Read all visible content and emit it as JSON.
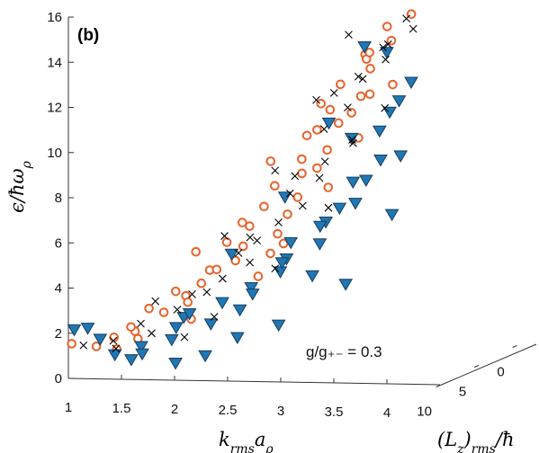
{
  "panel_label": "(b)",
  "chart_data": {
    "type": "scatter",
    "title": "",
    "xlabel": "k_rms a_ρ",
    "ylabel": "ε/ħω_ρ",
    "zlabel": "(L_z)_rms/ħ",
    "xlim": [
      1,
      4.5
    ],
    "ylim": [
      0,
      16
    ],
    "zlim": [
      0,
      10
    ],
    "x_ticks": [
      "1",
      "1.5",
      "2",
      "2.5",
      "3",
      "3.5",
      "4"
    ],
    "y_ticks": [
      "0",
      "2",
      "4",
      "6",
      "8",
      "10",
      "12",
      "14",
      "16"
    ],
    "z_ticks": [
      "0",
      "5",
      "10"
    ],
    "annotation": "g/g₊₋ = 0.3",
    "grid": false,
    "colors": {
      "circle": "#e8622a",
      "triangle": "#1f77b4",
      "triangle_edge": "#1a3d5c",
      "cross": "#000000"
    },
    "series": [
      {
        "marker": "circle-open",
        "color": "#e8622a",
        "points": [
          [
            1.63,
            1.73,
            3.0
          ],
          [
            1.76,
            1.58,
            4.2
          ],
          [
            1.84,
            1.42,
            5.5
          ],
          [
            1.96,
            1.99,
            3.8
          ],
          [
            2.09,
            2.24,
            4.6
          ],
          [
            2.18,
            2.47,
            3.1
          ],
          [
            2.25,
            3.04,
            5.9
          ],
          [
            2.41,
            3.31,
            2.4
          ],
          [
            2.49,
            2.74,
            6.1
          ],
          [
            2.55,
            4.03,
            3.7
          ],
          [
            2.68,
            4.35,
            5.0
          ],
          [
            2.74,
            3.86,
            2.6
          ],
          [
            2.81,
            4.95,
            4.4
          ],
          [
            2.89,
            5.32,
            6.3
          ],
          [
            2.97,
            5.01,
            3.3
          ],
          [
            3.04,
            5.98,
            5.4
          ],
          [
            3.1,
            6.23,
            2.9
          ],
          [
            3.16,
            5.62,
            7.0
          ],
          [
            3.22,
            6.91,
            4.0
          ],
          [
            3.28,
            7.11,
            2.5
          ],
          [
            3.33,
            6.52,
            5.8
          ],
          [
            3.39,
            7.79,
            3.6
          ],
          [
            3.45,
            8.12,
            6.6
          ],
          [
            3.5,
            7.41,
            4.9
          ],
          [
            3.56,
            8.73,
            2.8
          ],
          [
            3.61,
            9.21,
            5.2
          ],
          [
            3.67,
            8.53,
            7.4
          ],
          [
            3.72,
            9.88,
            3.9
          ],
          [
            3.78,
            10.23,
            6.0
          ],
          [
            3.83,
            9.47,
            4.3
          ],
          [
            3.88,
            10.96,
            2.6
          ],
          [
            3.93,
            11.43,
            5.5
          ],
          [
            3.98,
            10.73,
            7.1
          ],
          [
            4.03,
            12.08,
            3.4
          ],
          [
            4.08,
            12.6,
            6.2
          ],
          [
            4.12,
            11.91,
            4.7
          ],
          [
            4.17,
            13.22,
            2.9
          ],
          [
            4.22,
            13.84,
            5.6
          ],
          [
            4.26,
            13.08,
            7.6
          ],
          [
            4.3,
            14.51,
            4.1
          ],
          [
            4.35,
            15.06,
            6.4
          ],
          [
            4.39,
            14.33,
            3.2
          ],
          [
            4.43,
            15.72,
            5.0
          ],
          [
            4.47,
            16.21,
            7.2
          ],
          [
            2.22,
            1.94,
            3.4
          ],
          [
            2.63,
            3.54,
            4.1
          ],
          [
            2.86,
            5.82,
            2.3
          ],
          [
            3.07,
            4.61,
            6.7
          ],
          [
            3.36,
            6.08,
            6.1
          ],
          [
            3.53,
            9.82,
            2.7
          ],
          [
            3.71,
            11.13,
            5.7
          ],
          [
            3.91,
            12.34,
            3.8
          ],
          [
            4.11,
            14.52,
            6.8
          ],
          [
            4.31,
            12.74,
            4.5
          ]
        ]
      },
      {
        "marker": "triangle-down-filled",
        "color": "#1f77b4",
        "points": [
          [
            1.62,
            2.36,
            3.4
          ],
          [
            1.71,
            1.89,
            5.2
          ],
          [
            1.79,
            2.44,
            2.9
          ],
          [
            1.9,
            1.22,
            4.6
          ],
          [
            2.02,
            1.54,
            6.1
          ],
          [
            2.14,
            1.03,
            3.6
          ],
          [
            2.23,
            1.82,
            7.0
          ],
          [
            2.32,
            1.31,
            2.7
          ],
          [
            2.46,
            2.42,
            4.8
          ],
          [
            2.58,
            1.12,
            6.6
          ],
          [
            2.66,
            2.91,
            3.3
          ],
          [
            2.78,
            1.89,
            7.8
          ],
          [
            2.86,
            3.51,
            5.2
          ],
          [
            2.95,
            2.63,
            2.9
          ],
          [
            3.03,
            4.14,
            6.4
          ],
          [
            3.12,
            3.22,
            4.1
          ],
          [
            3.21,
            4.81,
            7.5
          ],
          [
            3.3,
            3.94,
            3.4
          ],
          [
            3.38,
            5.42,
            6.2
          ],
          [
            3.46,
            4.62,
            8.1
          ],
          [
            3.54,
            6.18,
            4.8
          ],
          [
            3.62,
            5.34,
            2.9
          ],
          [
            3.69,
            7.03,
            6.9
          ],
          [
            3.77,
            6.11,
            5.3
          ],
          [
            3.84,
            7.82,
            8.4
          ],
          [
            3.91,
            6.93,
            3.7
          ],
          [
            3.98,
            8.81,
            6.5
          ],
          [
            4.05,
            7.72,
            4.2
          ],
          [
            4.12,
            9.75,
            7.9
          ],
          [
            4.18,
            8.92,
            5.6
          ],
          [
            4.24,
            10.84,
            3.3
          ],
          [
            4.3,
            9.93,
            8.0
          ],
          [
            4.36,
            11.92,
            6.1
          ],
          [
            4.41,
            11.13,
            4.4
          ],
          [
            4.46,
            13.21,
            7.3
          ],
          [
            4.5,
            12.44,
            5.5
          ],
          [
            4.53,
            14.63,
            3.8
          ],
          [
            2.74,
            3.08,
            3.0
          ],
          [
            3.18,
            5.73,
            2.5
          ],
          [
            3.63,
            8.24,
            3.1
          ],
          [
            4.07,
            11.53,
            2.8
          ],
          [
            4.44,
            14.92,
            2.4
          ],
          [
            2.36,
            0.81,
            5.9
          ],
          [
            3.1,
            2.42,
            8.6
          ],
          [
            3.68,
            4.21,
            9.2
          ],
          [
            4.15,
            7.31,
            8.8
          ]
        ]
      },
      {
        "marker": "cross",
        "color": "#000000",
        "points": [
          [
            1.69,
            1.64,
            3.6
          ],
          [
            1.86,
            1.81,
            4.9
          ],
          [
            2.03,
            1.51,
            3.2
          ],
          [
            2.16,
            2.12,
            5.6
          ],
          [
            2.29,
            2.62,
            2.9
          ],
          [
            2.41,
            1.93,
            6.3
          ],
          [
            2.53,
            3.21,
            4.1
          ],
          [
            2.63,
            2.81,
            7.0
          ],
          [
            2.73,
            3.91,
            3.4
          ],
          [
            2.82,
            4.54,
            5.7
          ],
          [
            2.92,
            4.02,
            2.8
          ],
          [
            3.0,
            5.23,
            6.6
          ],
          [
            3.09,
            5.71,
            4.3
          ],
          [
            3.17,
            4.94,
            7.4
          ],
          [
            3.25,
            6.42,
            3.7
          ],
          [
            3.33,
            7.02,
            5.9
          ],
          [
            3.41,
            6.31,
            2.6
          ],
          [
            3.48,
            7.73,
            6.8
          ],
          [
            3.55,
            8.34,
            4.6
          ],
          [
            3.62,
            7.61,
            8.0
          ],
          [
            3.69,
            9.14,
            3.5
          ],
          [
            3.75,
            9.71,
            6.1
          ],
          [
            3.81,
            9.02,
            4.8
          ],
          [
            3.87,
            10.63,
            7.7
          ],
          [
            3.93,
            11.21,
            3.9
          ],
          [
            3.99,
            10.52,
            6.4
          ],
          [
            4.05,
            12.13,
            5.1
          ],
          [
            4.11,
            12.84,
            2.9
          ],
          [
            4.16,
            12.03,
            7.9
          ],
          [
            4.21,
            13.52,
            4.4
          ],
          [
            4.27,
            14.21,
            6.7
          ],
          [
            4.32,
            13.44,
            3.6
          ],
          [
            4.37,
            14.91,
            5.8
          ],
          [
            4.41,
            15.53,
            8.1
          ],
          [
            4.46,
            14.82,
            4.2
          ],
          [
            4.5,
            16.04,
            6.3
          ],
          [
            2.47,
            3.63,
            2.4
          ],
          [
            3.13,
            6.52,
            2.3
          ],
          [
            3.58,
            9.41,
            2.6
          ],
          [
            3.96,
            12.53,
            2.7
          ],
          [
            4.29,
            15.43,
            2.4
          ]
        ]
      }
    ]
  }
}
